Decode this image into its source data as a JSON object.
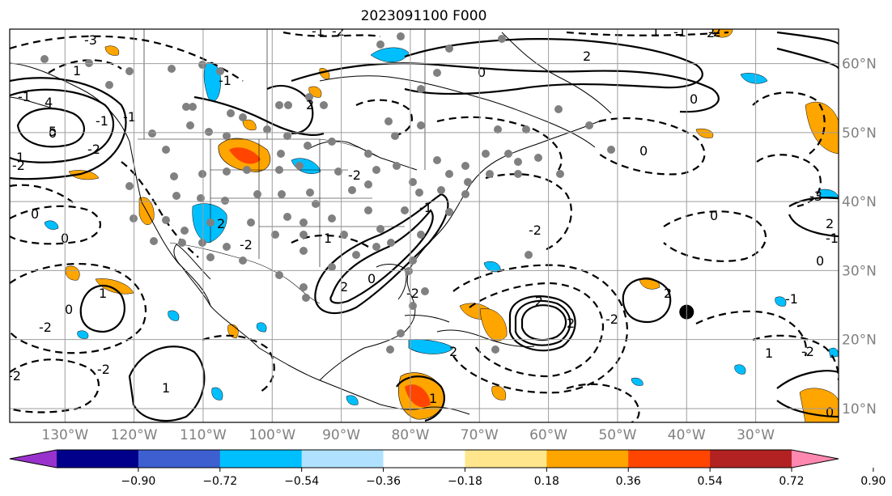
{
  "title": "2023091100 F000",
  "map": {
    "projection": "PlateCarree",
    "extent": {
      "lon_min": -138,
      "lon_max": -18,
      "lat_min": 8,
      "lat_max": 65
    },
    "lat_labels": [
      "10°N",
      "20°N",
      "30°N",
      "40°N",
      "50°N",
      "60°N"
    ],
    "lat_values": [
      10,
      20,
      30,
      40,
      50,
      60
    ],
    "lon_labels": [
      "130°W",
      "120°W",
      "110°W",
      "100°W",
      "90°W",
      "80°W",
      "70°W",
      "60°W",
      "50°W",
      "40°W",
      "30°W"
    ],
    "lon_values": [
      -130,
      -120,
      -110,
      -100,
      -90,
      -80,
      -70,
      -60,
      -50,
      -40,
      -30
    ],
    "grid": true,
    "contour_labels": [
      "-3",
      "-1",
      "-2",
      "1",
      "-1",
      "0",
      "-1",
      "-2",
      "2",
      "0",
      "-2",
      "5",
      "4",
      "-1",
      "-2",
      "1",
      "0",
      "-2",
      "2",
      "-2",
      "0",
      "2",
      "-2",
      "1",
      "-1",
      "2",
      "0",
      "-2",
      "1",
      "-2",
      "2",
      "-2",
      "0",
      "1",
      "-1",
      "2",
      "0",
      "-2",
      "0",
      "-3",
      "2",
      "-1",
      "-1",
      "1",
      "-2",
      "0",
      "1",
      "0",
      "1",
      "-1",
      "2",
      "-2",
      "-2",
      "2",
      "0"
    ],
    "highlight_marker": {
      "lon": -40,
      "lat": 24,
      "color": "#000000"
    }
  },
  "colorbar": {
    "ticks": [
      "−0.90",
      "−0.72",
      "−0.54",
      "−0.36",
      "−0.18",
      "0.18",
      "0.36",
      "0.54",
      "0.72",
      "0.90"
    ],
    "colors": [
      "#9932cc",
      "#00008b",
      "#3d5fd0",
      "#00bfff",
      "#b0e2ff",
      "#ffffff",
      "#ffe68c",
      "#ffa500",
      "#ff4500",
      "#b22222",
      "#ff88b0"
    ]
  },
  "colors": {
    "station_dot": "#808080",
    "grid": "#9e9e9e"
  }
}
